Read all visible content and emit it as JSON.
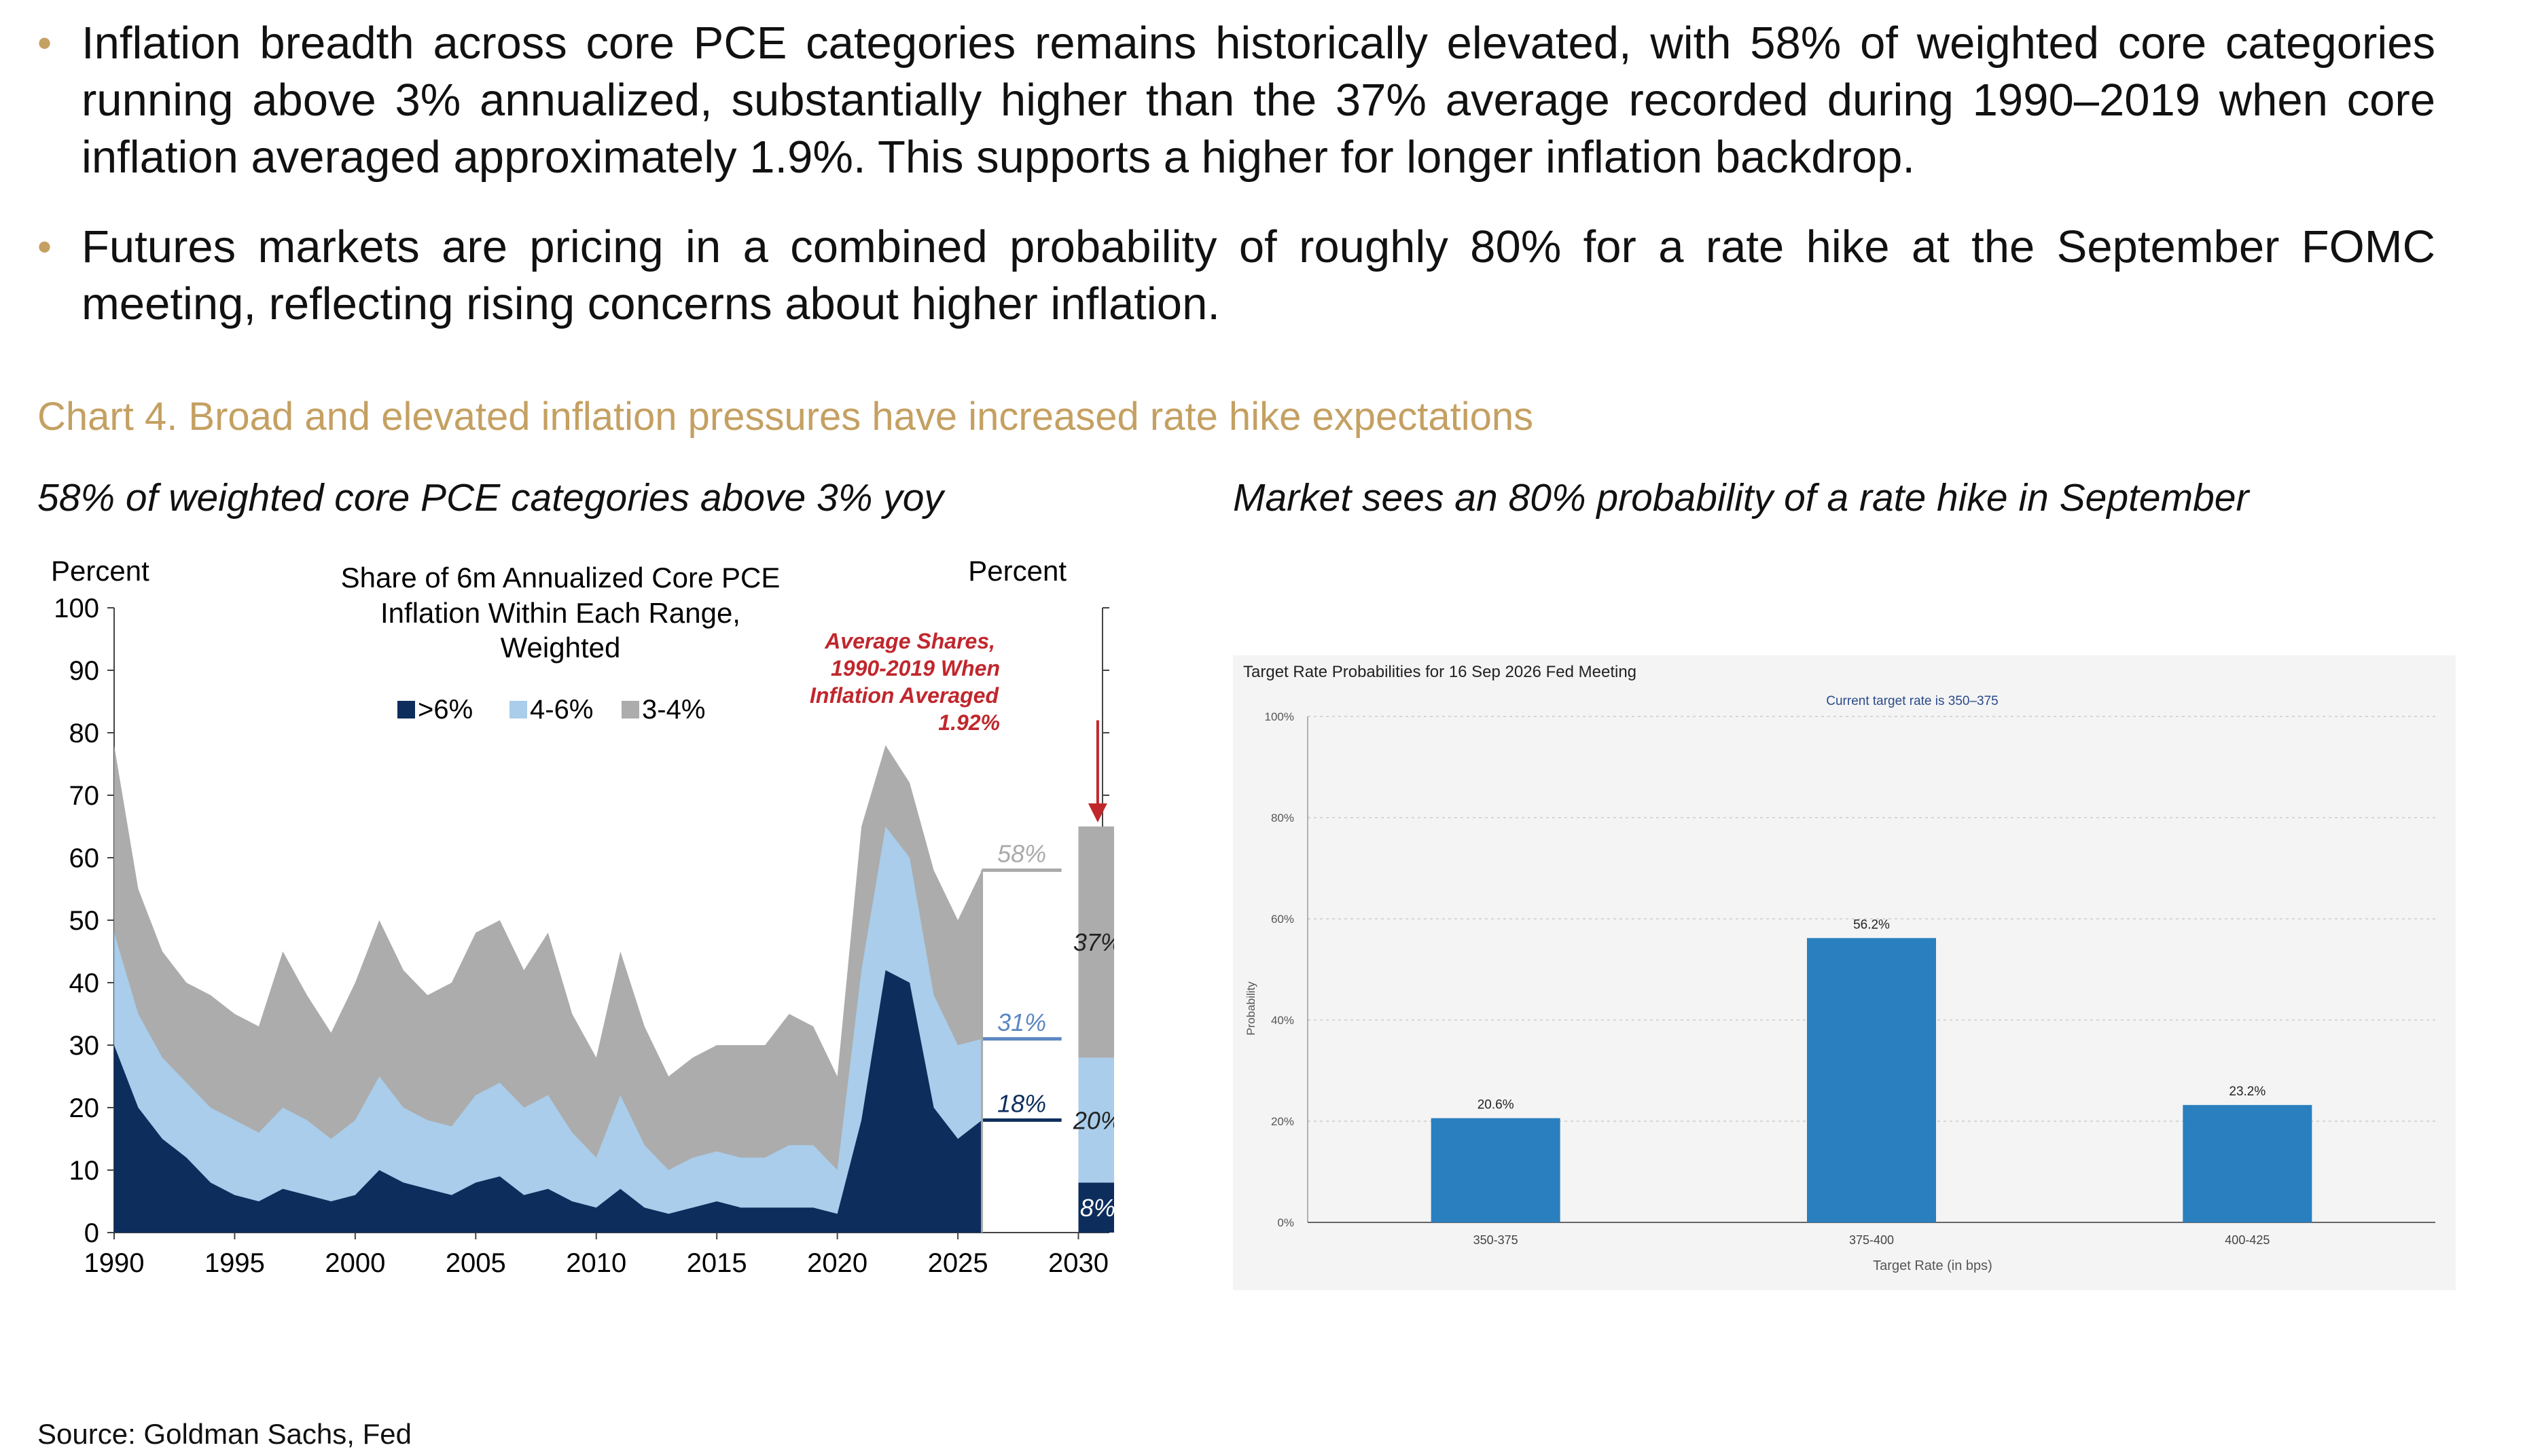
{
  "bullets": [
    "Inflation breadth across core PCE categories remains historically elevated, with 58% of weighted core categories running above 3% annualized, substantially higher than the 37% average recorded during 1990–2019 when core inflation averaged approximately 1.9%. This supports a higher for longer inflation backdrop.",
    "Futures markets are pricing in a combined probability of roughly 80% for a rate hike at the September FOMC meeting, reflecting rising concerns about higher inflation."
  ],
  "chart_heading": "Chart 4. Broad and elevated inflation pressures have increased rate hike expectations",
  "left_subtitle": "58% of weighted core PCE categories above 3% yoy",
  "right_subtitle": "Market sees an 80% probability of a rate hike in September",
  "source": "Source: Goldman Sachs, Fed",
  "colors": {
    "accent": "#c4a062",
    "dark_navy": "#0d2d5c",
    "light_blue": "#a9cdea",
    "gray": "#acacac",
    "bar_blue": "#2a7fbf",
    "arrow_red": "#c0272d"
  },
  "chart_data": [
    {
      "type": "area",
      "title": "Share of 6m Annualized Core PCE Inflation Within Each Range, Weighted",
      "ylabel_left": "Percent",
      "ylabel_right": "Percent",
      "ylim": [
        0,
        100
      ],
      "xlim": [
        1990,
        2031
      ],
      "x_ticks": [
        "1990",
        "1995",
        "2000",
        "2005",
        "2010",
        "2015",
        "2020",
        "2025",
        "2030"
      ],
      "y_ticks": [
        "0",
        "10",
        "20",
        "30",
        "40",
        "50",
        "60",
        "70",
        "80",
        "90",
        "100"
      ],
      "legend_position": "top-center",
      "x": [
        1990,
        1991,
        1992,
        1993,
        1994,
        1995,
        1996,
        1997,
        1998,
        1999,
        2000,
        2001,
        2002,
        2003,
        2004,
        2005,
        2006,
        2007,
        2008,
        2009,
        2010,
        2011,
        2012,
        2013,
        2014,
        2015,
        2016,
        2017,
        2018,
        2019,
        2020,
        2021,
        2022,
        2023,
        2024,
        2025,
        2026
      ],
      "series": [
        {
          "name": ">6%",
          "values": [
            30,
            20,
            15,
            12,
            8,
            6,
            5,
            7,
            6,
            5,
            6,
            10,
            8,
            7,
            6,
            8,
            9,
            6,
            7,
            5,
            4,
            7,
            4,
            3,
            4,
            5,
            4,
            4,
            4,
            4,
            3,
            18,
            42,
            40,
            20,
            15,
            18
          ]
        },
        {
          "name": "4-6%",
          "values": [
            48,
            35,
            28,
            24,
            20,
            18,
            16,
            20,
            18,
            15,
            18,
            25,
            20,
            18,
            17,
            22,
            24,
            20,
            22,
            16,
            12,
            22,
            14,
            10,
            12,
            13,
            12,
            12,
            14,
            14,
            10,
            42,
            65,
            60,
            38,
            30,
            31
          ]
        },
        {
          "name": "3-4%",
          "values": [
            78,
            55,
            45,
            40,
            38,
            35,
            33,
            45,
            38,
            32,
            40,
            50,
            42,
            38,
            40,
            48,
            50,
            42,
            48,
            35,
            28,
            45,
            33,
            25,
            28,
            30,
            30,
            30,
            35,
            33,
            25,
            65,
            78,
            72,
            58,
            50,
            58
          ]
        }
      ],
      "current_labels": [
        "58%",
        "31%",
        "18%"
      ],
      "average_bar": {
        "annotation": "Average Shares, 1990-2019 When Inflation Averaged 1.92%",
        "segments": [
          {
            "name": ">6%",
            "value": 8,
            "label": "8%"
          },
          {
            "name": "4-6%",
            "value": 20,
            "label": "20%"
          },
          {
            "name": "3-4%",
            "value": 37,
            "label": "37%"
          }
        ]
      }
    },
    {
      "type": "bar",
      "title": "Target Rate Probabilities for 16 Sep 2026 Fed Meeting",
      "subtitle": "Current target rate is 350-375",
      "xlabel": "Target Rate (in bps)",
      "ylabel": "Probability",
      "ylim": [
        0,
        100
      ],
      "y_ticks": [
        "0%",
        "20%",
        "40%",
        "60%",
        "80%",
        "100%"
      ],
      "categories": [
        "350-375",
        "375-400",
        "400-425"
      ],
      "values": [
        20.6,
        56.2,
        23.2
      ],
      "value_labels": [
        "20.6%",
        "56.2%",
        "23.2%"
      ],
      "grid": true
    }
  ]
}
